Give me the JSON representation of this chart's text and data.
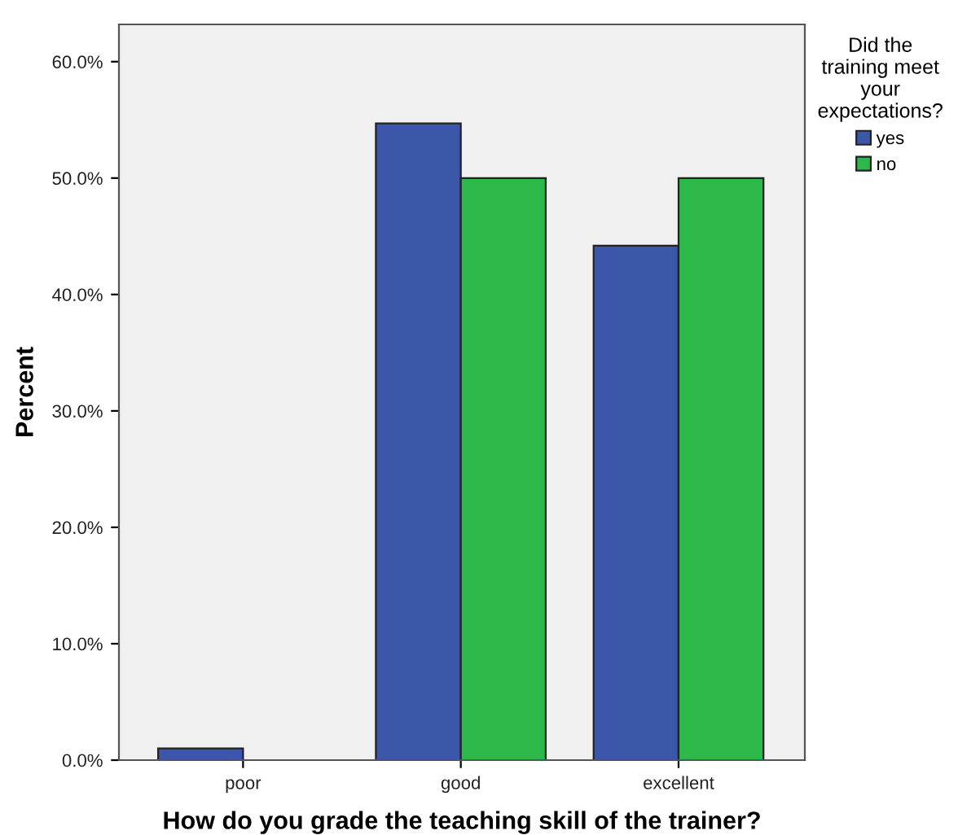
{
  "chart_data": {
    "type": "bar",
    "xlabel": "How do you grade the teaching skill of the trainer?",
    "ylabel": "Percent",
    "legend_title": "Did the\ntraining meet\nyour\nexpectations?",
    "categories": [
      "poor",
      "good",
      "excellent"
    ],
    "series": [
      {
        "name": "yes",
        "color": "#3c56a9",
        "values": [
          1.0,
          54.7,
          44.2
        ]
      },
      {
        "name": "no",
        "color": "#2db84b",
        "values": [
          0.0,
          50.0,
          50.0
        ]
      }
    ],
    "ylim": [
      0,
      63.2
    ],
    "yticks": [
      {
        "value": 0,
        "label": "0.0%"
      },
      {
        "value": 10,
        "label": "10.0%"
      },
      {
        "value": 20,
        "label": "20.0%"
      },
      {
        "value": 30,
        "label": "30.0%"
      },
      {
        "value": 40,
        "label": "40.0%"
      },
      {
        "value": 50,
        "label": "50.0%"
      },
      {
        "value": 60,
        "label": "60.0%"
      }
    ],
    "grid": false,
    "legend": "top right"
  }
}
